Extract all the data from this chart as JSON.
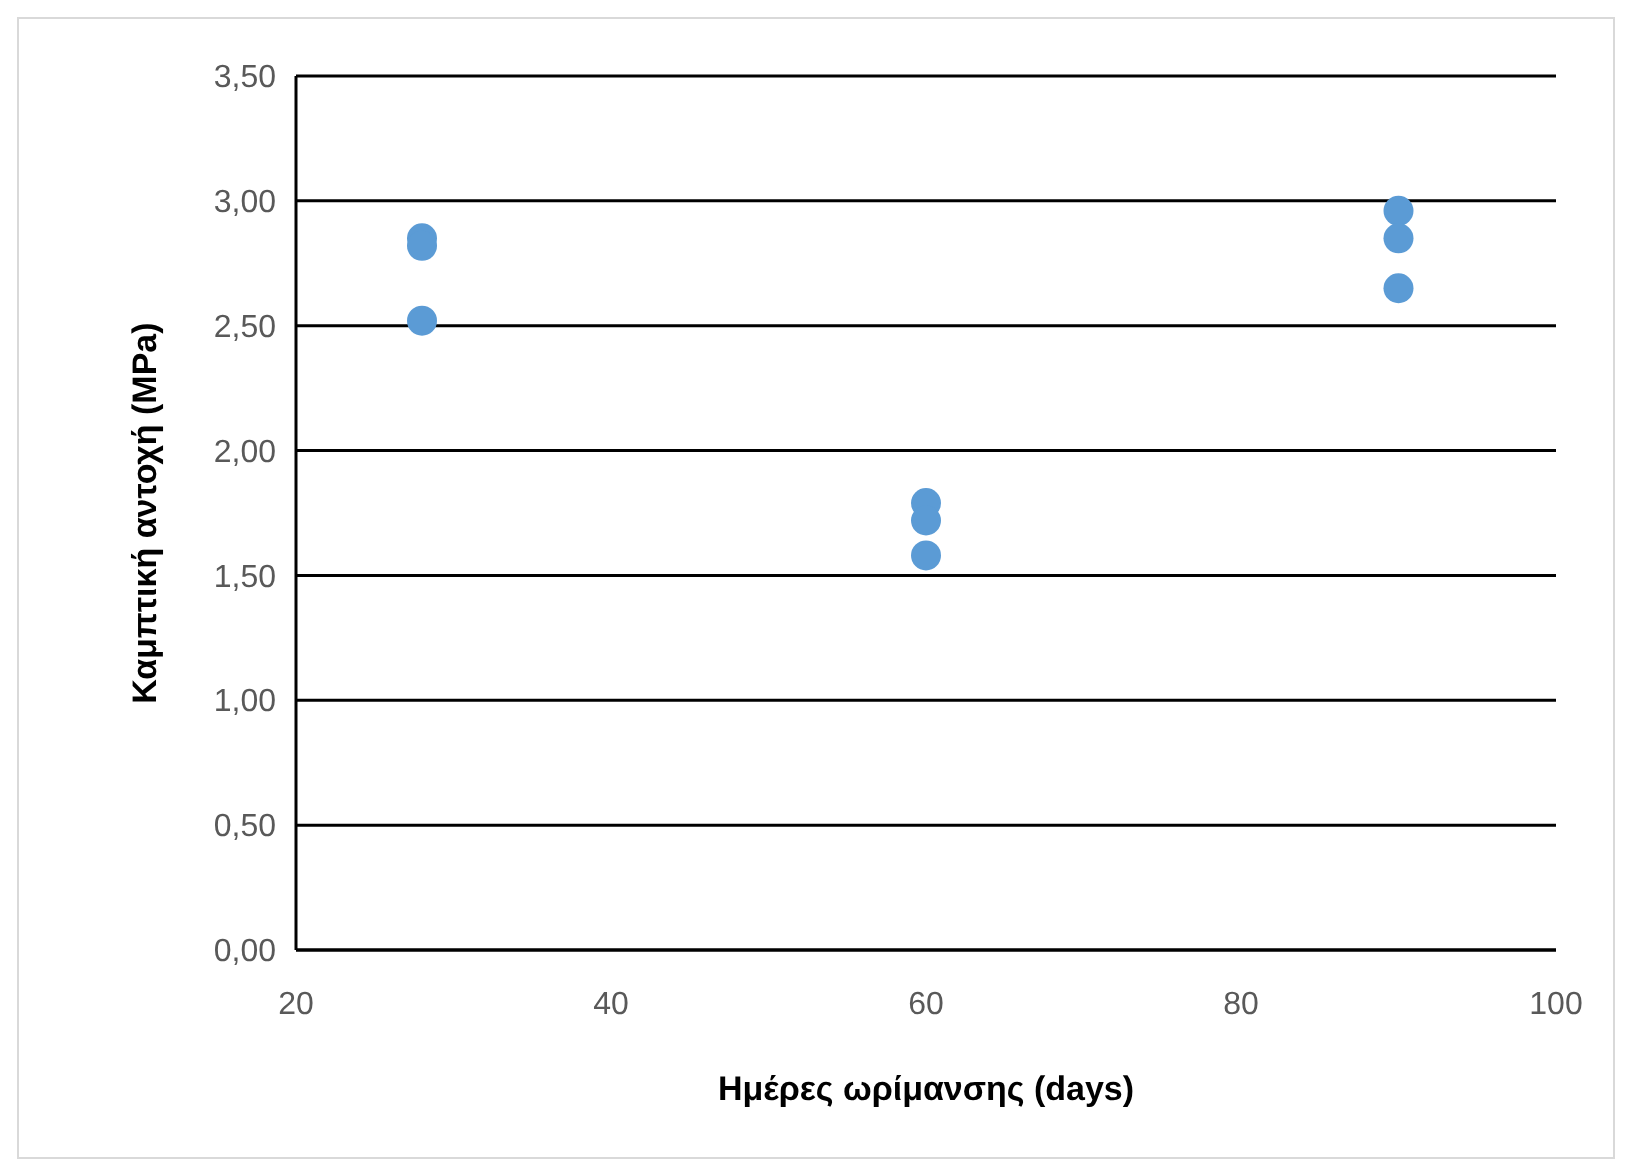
{
  "chart_data": {
    "type": "scatter",
    "xlabel": "Ημέρες ωρίμανσης (days)",
    "ylabel": "Καμπτική αντοχή (MPa)",
    "series": [
      {
        "color": "#5b9bd5",
        "x": [
          28,
          28,
          28,
          60,
          60,
          60,
          90,
          90,
          90
        ],
        "values": [
          2.85,
          2.82,
          2.52,
          1.79,
          1.72,
          1.58,
          2.96,
          2.85,
          2.65
        ]
      }
    ],
    "xlim": [
      20,
      100
    ],
    "xticks": [
      20,
      40,
      60,
      80,
      100
    ],
    "ylim": [
      0,
      3.5
    ],
    "yticks": [
      {
        "value": 0,
        "label": "0,00"
      },
      {
        "value": 0.5,
        "label": "0,50"
      },
      {
        "value": 1,
        "label": "1,00"
      },
      {
        "value": 1.5,
        "label": "1,50"
      },
      {
        "value": 2,
        "label": "2,00"
      },
      {
        "value": 2.5,
        "label": "2,50"
      },
      {
        "value": 3,
        "label": "3,00"
      },
      {
        "value": 3.5,
        "label": "3,50"
      }
    ],
    "grid": "y",
    "marker": "circle"
  }
}
